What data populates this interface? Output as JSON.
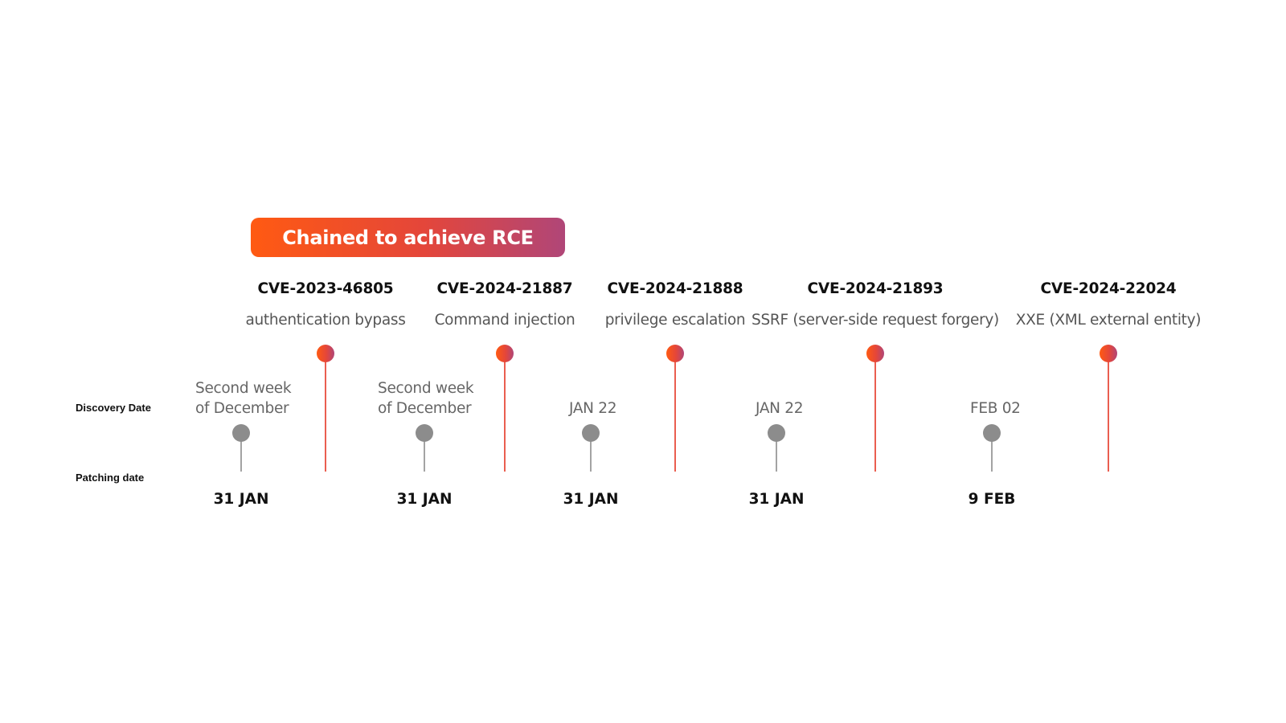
{
  "banner": {
    "text": "Chained to achieve RCE"
  },
  "row_labels": {
    "discovery": "Discovery Date",
    "patching": "Patching date"
  },
  "vulnerabilities": [
    {
      "cve": "CVE-2023-46805",
      "type": "authentication bypass",
      "discovery_lines": [
        "Second week",
        "of December"
      ],
      "patch_date": "31 JAN"
    },
    {
      "cve": "CVE-2024-21887",
      "type": "Command injection",
      "discovery_lines": [
        "Second week",
        "of December"
      ],
      "patch_date": "31 JAN"
    },
    {
      "cve": "CVE-2024-21888",
      "type": "privilege escalation",
      "discovery_lines": [
        "JAN 22"
      ],
      "patch_date": "31 JAN"
    },
    {
      "cve": "CVE-2024-21893",
      "type": "SSRF (server-side request forgery)",
      "discovery_lines": [
        "JAN 22"
      ],
      "patch_date": "31 JAN"
    },
    {
      "cve": "CVE-2024-22024",
      "type": "XXE (XML external entity)",
      "discovery_lines": [
        "FEB 02"
      ],
      "patch_date": "9 FEB"
    }
  ],
  "colors": {
    "accent_start": "#ff5a12",
    "accent_end": "#b04678",
    "discovery_marker": "#8c8c8c",
    "timeline": "#e84c3d"
  }
}
